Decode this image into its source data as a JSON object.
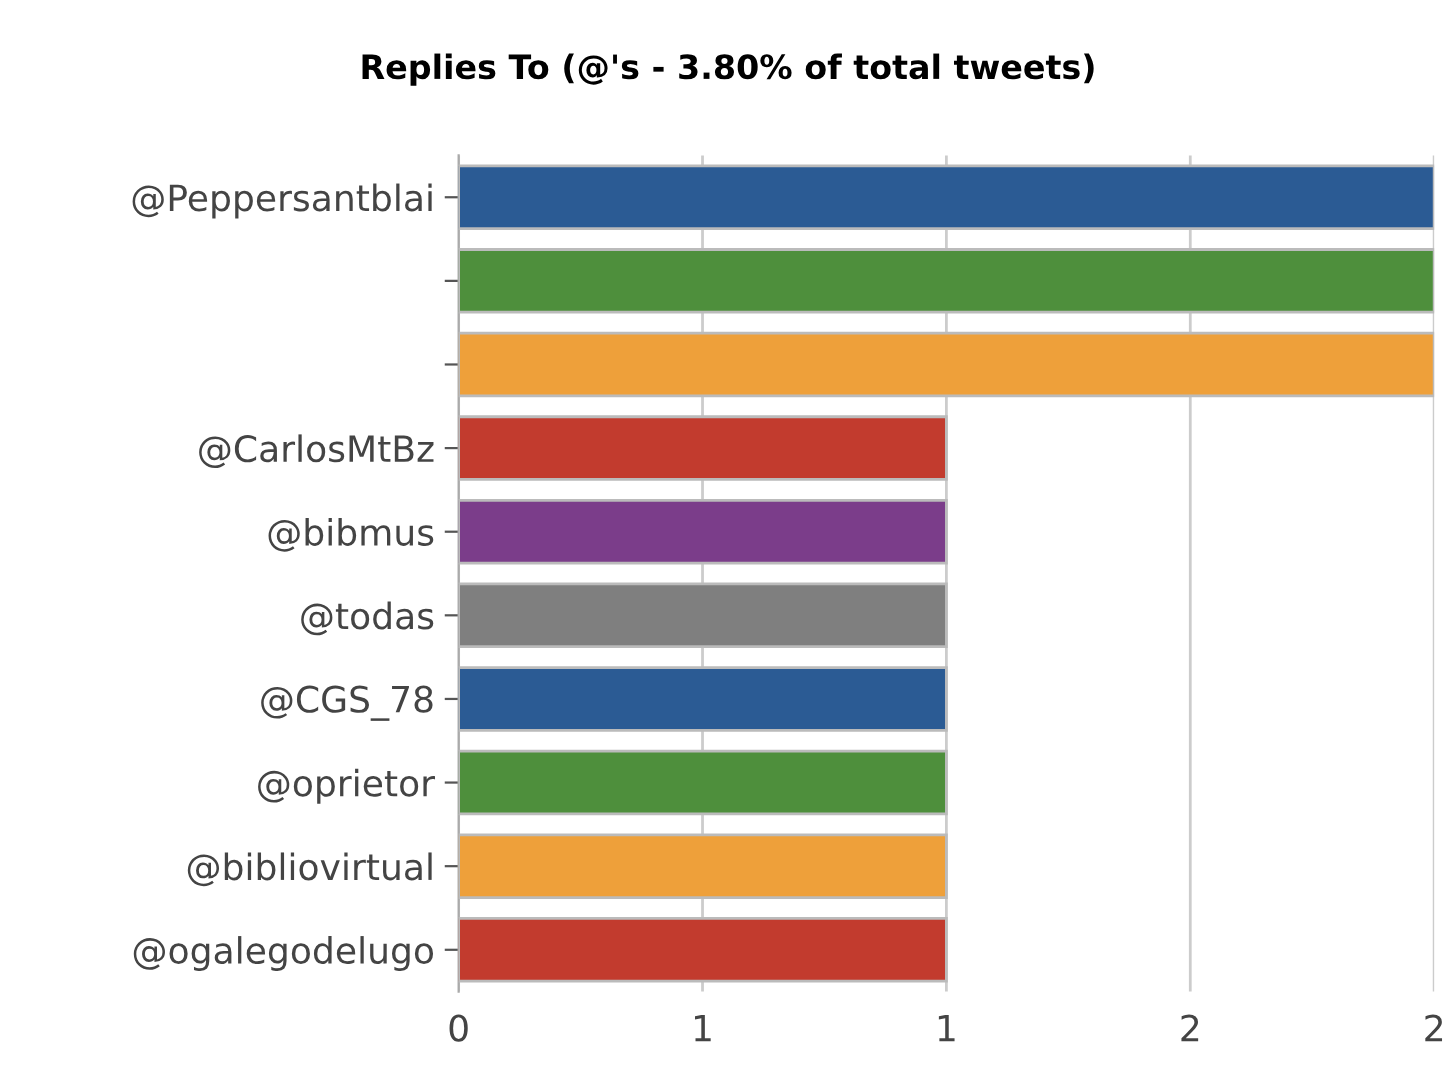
{
  "chart_data": {
    "type": "bar",
    "orientation": "horizontal",
    "title": "Replies To (@'s - 3.80% of total tweets)",
    "categories": [
      "@Peppersantblai",
      null,
      null,
      "@CarlosMtBz",
      "@bibmus",
      "@todas",
      "@CGS_78",
      "@oprietor",
      "@bibliovirtual",
      "@ogalegodelugo"
    ],
    "values": [
      2,
      2,
      2,
      1,
      1,
      1,
      1,
      1,
      1,
      1
    ],
    "colors": [
      "#2b5b94",
      "#4e8f3c",
      "#eea03a",
      "#c23b2e",
      "#7b3d8a",
      "#7f7f7f",
      "#2b5b94",
      "#4e8f3c",
      "#eea03a",
      "#c23b2e"
    ],
    "xlim": [
      0,
      2
    ],
    "xticks": [
      0,
      {
        "value": 0.5,
        "label": "1"
      },
      1,
      {
        "value": 1.5,
        "label": "2"
      },
      2
    ],
    "grid": "x"
  }
}
